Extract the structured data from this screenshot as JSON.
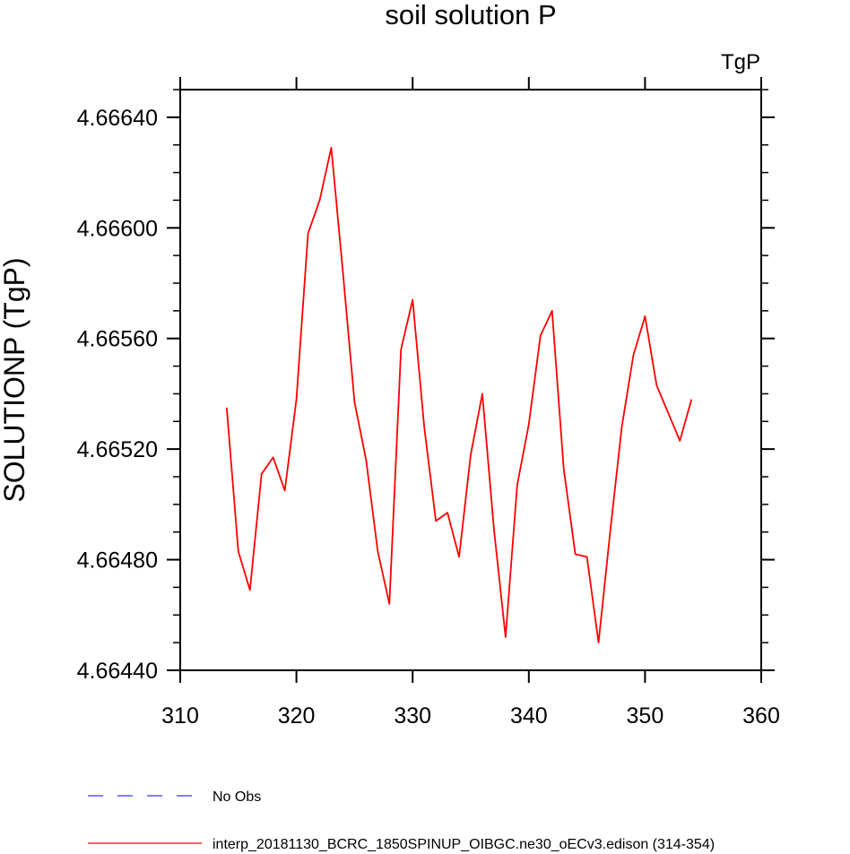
{
  "chart_data": {
    "type": "line",
    "title": "soil solution P",
    "units_label": "TgP",
    "xlabel": "",
    "ylabel": "SOLUTIONP  (TgP)",
    "xlim": [
      310,
      360
    ],
    "ylim": [
      4.6644,
      4.6665
    ],
    "x_ticks": [
      310,
      320,
      330,
      340,
      350,
      360
    ],
    "x_tick_labels": [
      "310",
      "320",
      "330",
      "340",
      "350",
      "360"
    ],
    "y_ticks": [
      4.6644,
      4.6648,
      4.6652,
      4.6656,
      4.666,
      4.6664
    ],
    "y_tick_labels": [
      "4.66440",
      "4.66480",
      "4.66520",
      "4.66560",
      "4.66600",
      "4.66640"
    ],
    "grid": false,
    "legend_position": "bottom",
    "series": [
      {
        "name": "No Obs",
        "color": "#3333ff",
        "dash": "dashed",
        "x": [],
        "values": []
      },
      {
        "name": "interp_20181130_BCRC_1850SPINUP_OIBGC.ne30_oECv3.edison (314-354)",
        "color": "#ff0000",
        "dash": "solid",
        "x": [
          314,
          315,
          316,
          317,
          318,
          319,
          320,
          321,
          322,
          323,
          324,
          325,
          326,
          327,
          328,
          329,
          330,
          331,
          332,
          333,
          334,
          335,
          336,
          337,
          338,
          339,
          340,
          341,
          342,
          343,
          344,
          345,
          346,
          347,
          348,
          349,
          350,
          351,
          352,
          353,
          354
        ],
        "values": [
          4.66535,
          4.66483,
          4.66469,
          4.66511,
          4.66517,
          4.66505,
          4.66538,
          4.66598,
          4.6661,
          4.66629,
          4.66584,
          4.66537,
          4.66516,
          4.66483,
          4.66464,
          4.66556,
          4.66574,
          4.66528,
          4.66494,
          4.66497,
          4.66481,
          4.66518,
          4.6654,
          4.66491,
          4.66452,
          4.66507,
          4.66529,
          4.66561,
          4.6657,
          4.66513,
          4.66482,
          4.66481,
          4.6645,
          4.6649,
          4.66528,
          4.66554,
          4.66568,
          4.66543,
          4.66533,
          4.66523,
          4.66538
        ]
      }
    ]
  }
}
